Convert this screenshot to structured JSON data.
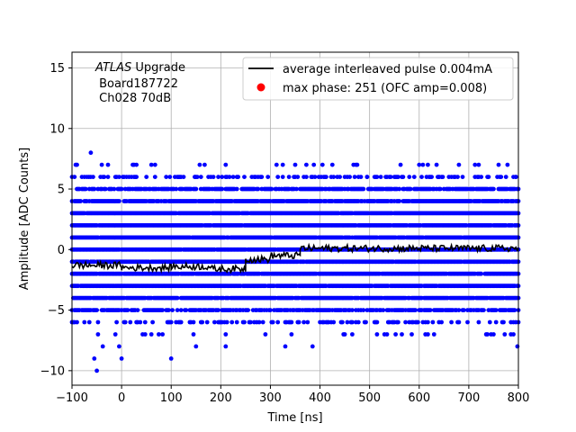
{
  "chart_data": {
    "type": "scatter",
    "xlabel": "Time [ns]",
    "ylabel": "Amplitude [ADC Counts]",
    "xlim": [
      -100,
      800
    ],
    "ylim": [
      -11.2,
      16.3
    ],
    "xticks": [
      -100,
      0,
      100,
      200,
      300,
      400,
      500,
      600,
      700,
      800
    ],
    "yticks": [
      -10,
      -5,
      0,
      5,
      10,
      15
    ],
    "xtick_labels": [
      "−100",
      "0",
      "100",
      "200",
      "300",
      "400",
      "500",
      "600",
      "700",
      "800"
    ],
    "ytick_labels": [
      "−10",
      "−5",
      "0",
      "5",
      "10",
      "15"
    ],
    "grid": true,
    "annotation": {
      "line1_italic": "ATLAS",
      "line1_rest": " Upgrade",
      "line2": " Board187722",
      "line3": " Ch028 70dB"
    },
    "legend": {
      "placement": "top-right",
      "entries": [
        {
          "label": "average interleaved pulse 0.004mA",
          "marker": "line",
          "color": "#000000"
        },
        {
          "label": "max phase: 251 (OFC amp=0.008)",
          "marker": "dot",
          "color": "#ff0000"
        }
      ]
    },
    "samples": {
      "name": "samples",
      "color": "#0000ff",
      "x_range": [
        -100,
        800
      ],
      "x_step": 2.5,
      "levels": [
        -7,
        -6,
        -5,
        -4,
        -3,
        -2,
        -1,
        0,
        1,
        2,
        3,
        4,
        5,
        6,
        7
      ],
      "outliers": [
        {
          "x": -62,
          "y": 8
        },
        {
          "x": -66,
          "y": 6
        },
        {
          "x": -50,
          "y": -10
        },
        {
          "x": -55,
          "y": -9
        },
        {
          "x": -38,
          "y": -8
        },
        {
          "x": -5,
          "y": -8
        },
        {
          "x": 0,
          "y": -9
        },
        {
          "x": 100,
          "y": -9
        },
        {
          "x": 148,
          "y": 6
        },
        {
          "x": 270,
          "y": 6
        },
        {
          "x": 325,
          "y": 6
        },
        {
          "x": 350,
          "y": 6
        },
        {
          "x": 425,
          "y": 7
        },
        {
          "x": 440,
          "y": 6
        },
        {
          "x": 475,
          "y": 7
        },
        {
          "x": 495,
          "y": 6
        },
        {
          "x": 565,
          "y": 6
        },
        {
          "x": 640,
          "y": 6
        },
        {
          "x": 660,
          "y": 6
        },
        {
          "x": 720,
          "y": 7
        },
        {
          "x": 778,
          "y": 7
        },
        {
          "x": 795,
          "y": 6
        },
        {
          "x": 798,
          "y": -8
        },
        {
          "x": 150,
          "y": -8
        },
        {
          "x": 210,
          "y": -8
        },
        {
          "x": 330,
          "y": -8
        },
        {
          "x": 385,
          "y": -8
        },
        {
          "x": 465,
          "y": -7
        },
        {
          "x": 630,
          "y": -7
        },
        {
          "x": 735,
          "y": -7
        }
      ]
    },
    "average_pulse": {
      "name": "average interleaved pulse 0.004mA",
      "color": "#000000",
      "segments": [
        {
          "x": [
            -100,
            0
          ],
          "y": -1.3
        },
        {
          "x": [
            0,
            100
          ],
          "y": -1.5
        },
        {
          "x": [
            100,
            180
          ],
          "y": -1.4
        },
        {
          "x": [
            180,
            250
          ],
          "y": -1.6
        },
        {
          "x": [
            250,
            300
          ],
          "y": -0.8
        },
        {
          "x": [
            300,
            360
          ],
          "y": -0.5
        },
        {
          "x": [
            360,
            800
          ],
          "y": 0.1
        }
      ],
      "x_step": 2.5,
      "noise": 0.28
    }
  }
}
